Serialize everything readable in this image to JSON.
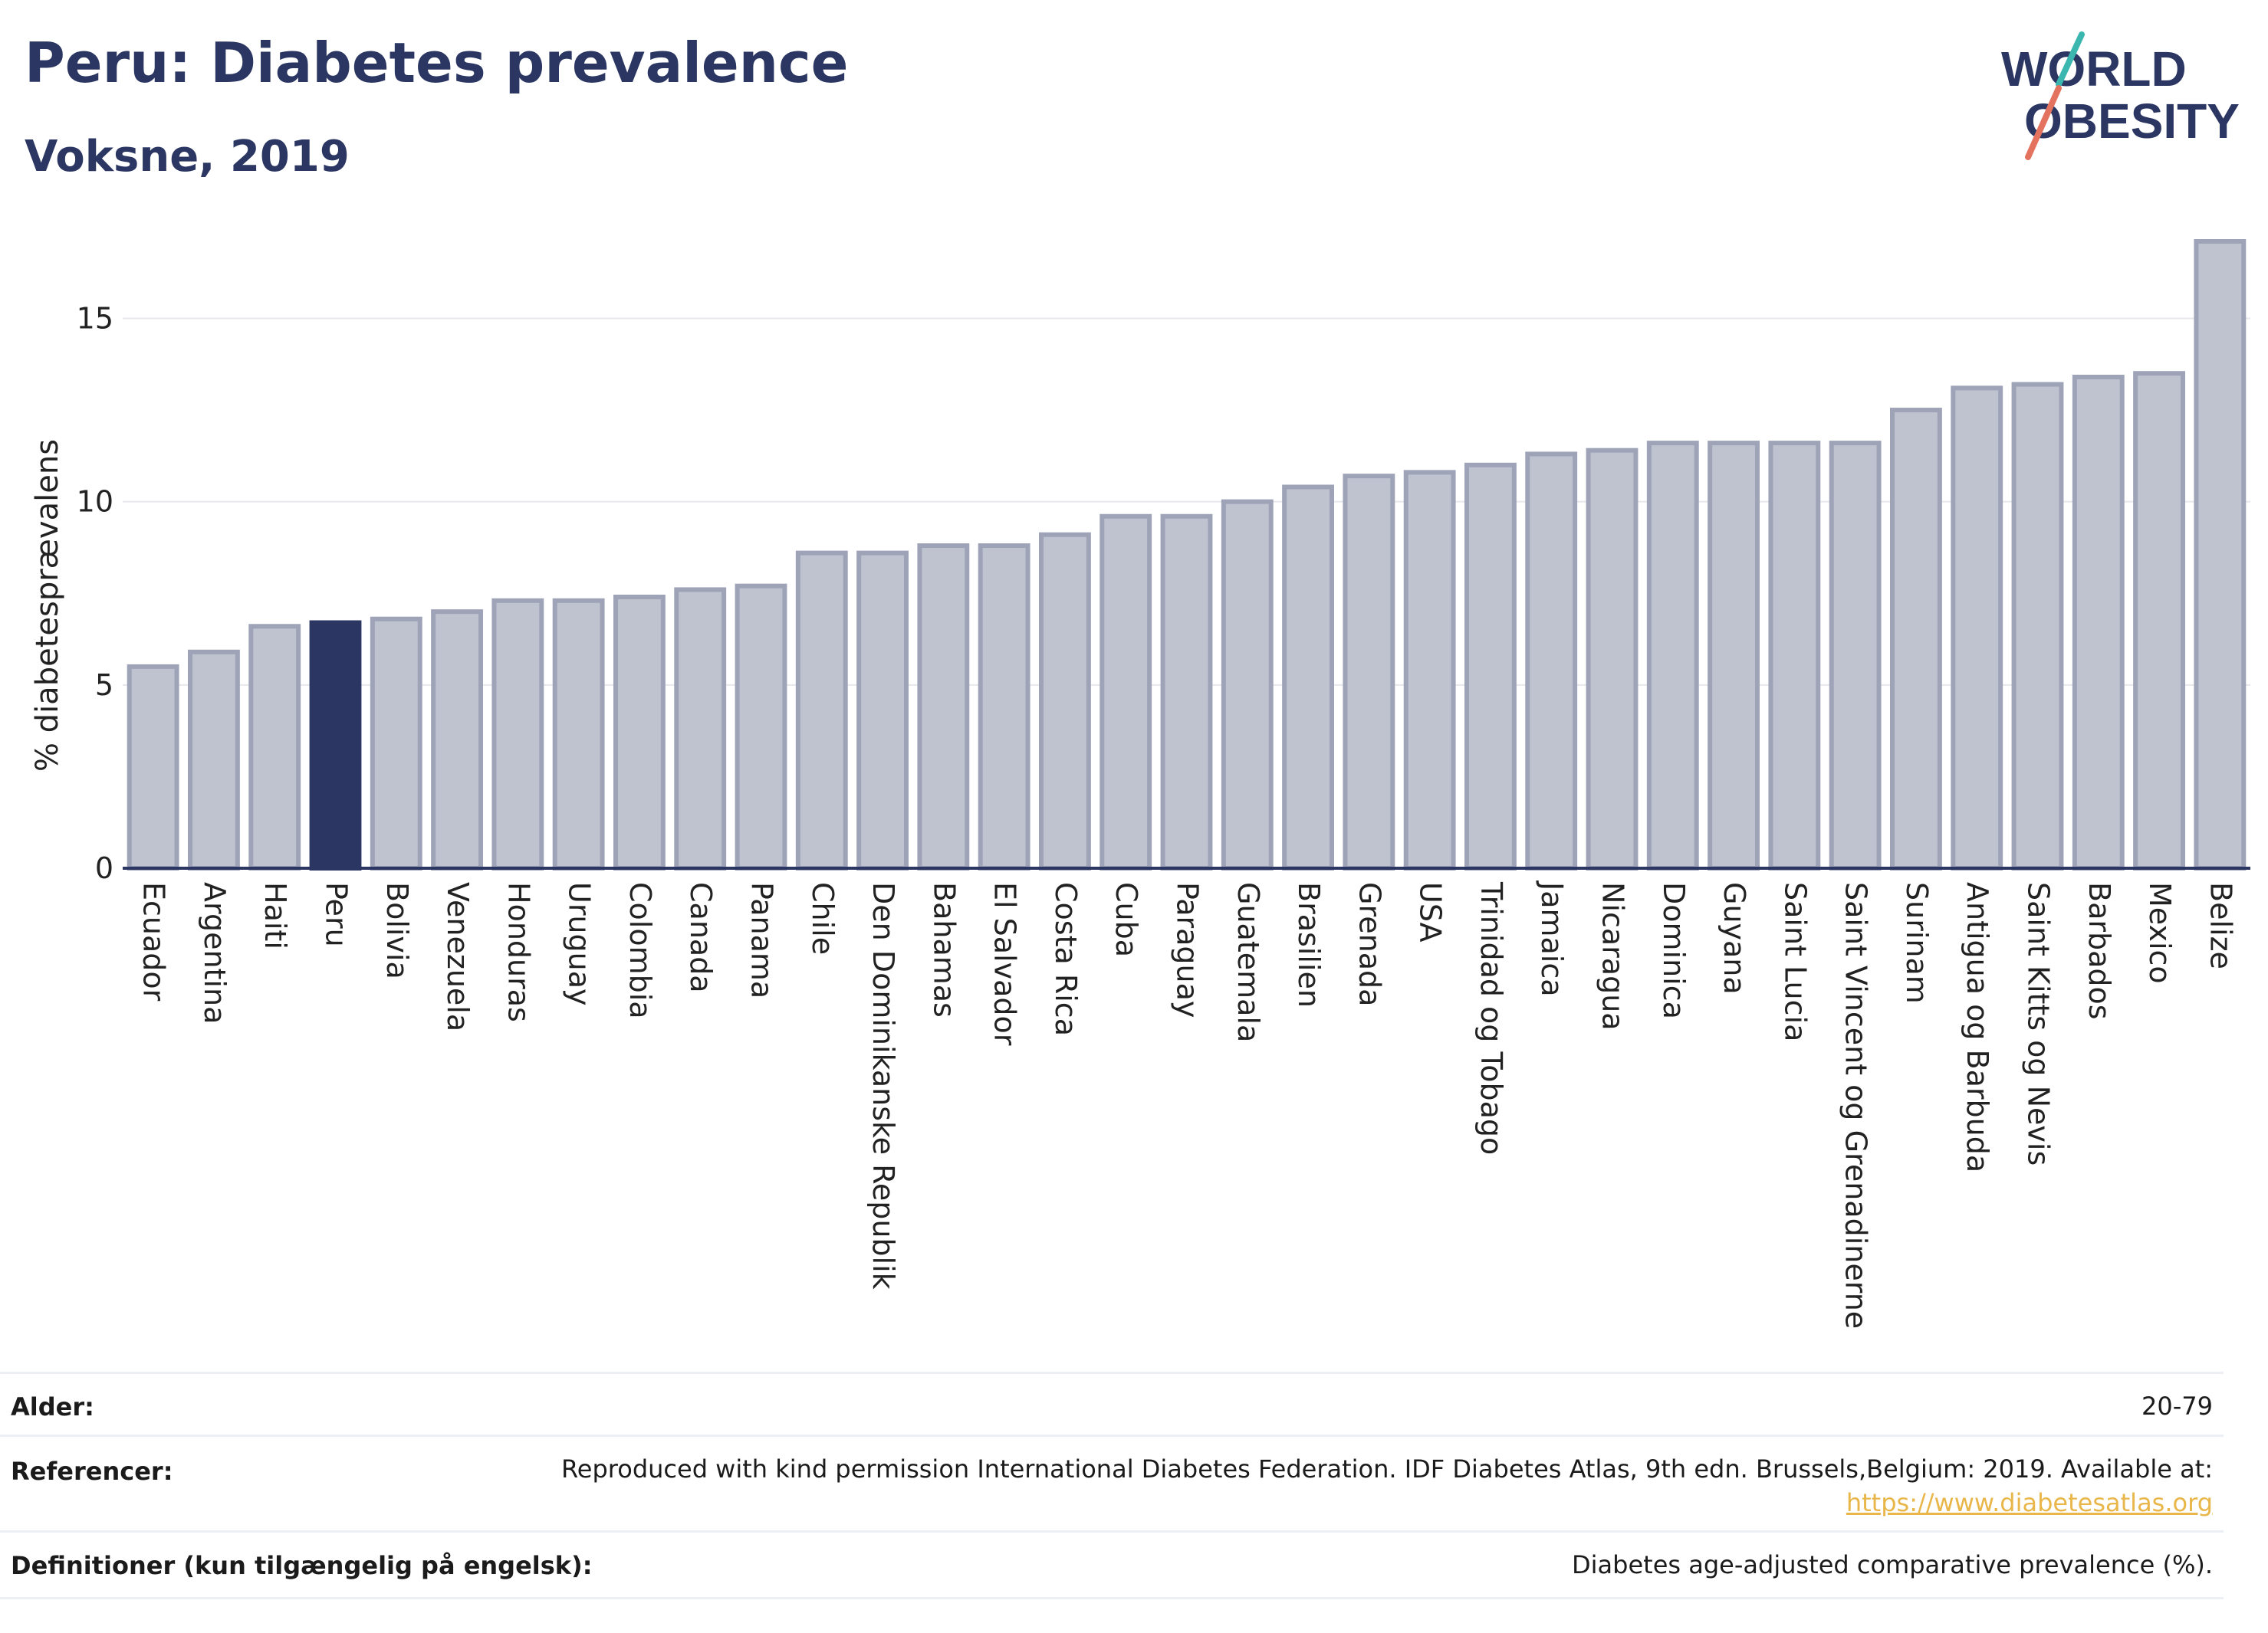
{
  "header": {
    "title": "Peru: Diabetes prevalence",
    "subtitle": "Voksne, 2019"
  },
  "logo": {
    "line1": "WORLD",
    "line2": "OBESITY",
    "accent_teal": "#3cb7b0",
    "accent_coral": "#e3735e",
    "text_color": "#2b3762"
  },
  "colors": {
    "bar": "#bfc2cf",
    "bar_border": "#9ea3b8",
    "highlight": "#2b3762",
    "grid": "#e6e8ec",
    "axis": "#2b3762"
  },
  "chart_data": {
    "type": "bar",
    "title": "Peru: Diabetes prevalence",
    "subtitle": "Voksne, 2019",
    "xlabel": "",
    "ylabel": "% diabetesprævalens",
    "ylim": [
      0,
      17.5
    ],
    "yticks": [
      0,
      5,
      10,
      15
    ],
    "grid": true,
    "highlight": "Peru",
    "categories": [
      "Ecuador",
      "Argentina",
      "Haiti",
      "Peru",
      "Bolivia",
      "Venezuela",
      "Honduras",
      "Uruguay",
      "Colombia",
      "Canada",
      "Panama",
      "Chile",
      "Den Dominikanske Republik",
      "Bahamas",
      "El Salvador",
      "Costa Rica",
      "Cuba",
      "Paraguay",
      "Guatemala",
      "Brasilien",
      "Grenada",
      "USA",
      "Trinidad og Tobago",
      "Jamaica",
      "Nicaragua",
      "Dominica",
      "Guyana",
      "Saint Lucia",
      "Saint Vincent og Grenadinerne",
      "Surinam",
      "Antigua og Barbuda",
      "Saint Kitts og Nevis",
      "Barbados",
      "Mexico",
      "Belize"
    ],
    "values": [
      5.5,
      5.9,
      6.6,
      6.7,
      6.8,
      7.0,
      7.3,
      7.3,
      7.4,
      7.6,
      7.7,
      8.6,
      8.6,
      8.8,
      8.8,
      9.1,
      9.6,
      9.6,
      10.0,
      10.4,
      10.7,
      10.8,
      11.0,
      11.3,
      11.4,
      11.6,
      11.6,
      11.6,
      11.6,
      12.5,
      13.1,
      13.2,
      13.4,
      13.5,
      17.1
    ]
  },
  "info": {
    "age_label": "Alder:",
    "age_value": "20-79",
    "ref_label": "Referencer:",
    "ref_text": "Reproduced with kind permission International Diabetes Federation. IDF Diabetes Atlas, 9th edn. Brussels,Belgium: 2019. Available at:",
    "ref_link": "https://www.diabetesatlas.org",
    "def_label": "Definitioner (kun tilgængelig på engelsk):",
    "def_value": "Diabetes age-adjusted comparative prevalence (%)."
  }
}
